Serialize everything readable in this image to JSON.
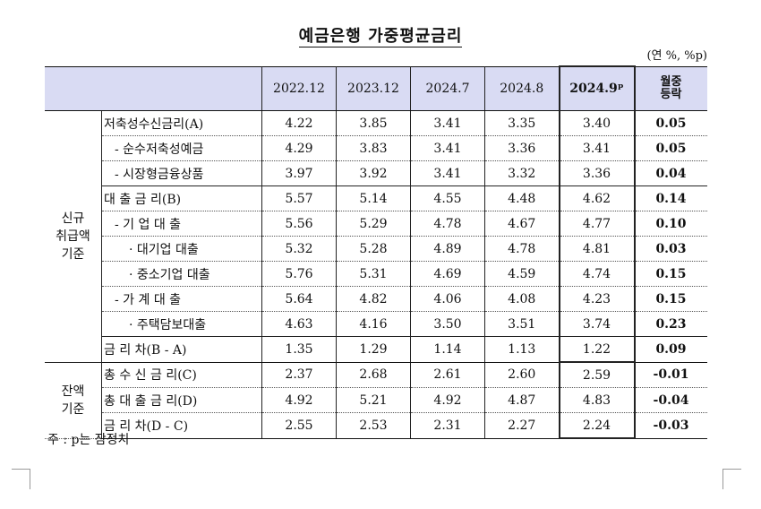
{
  "title": "예금은행 가중평균금리",
  "unit": "(연 %, %p)",
  "columns": [
    "2022.12",
    "2023.12",
    "2024.7",
    "2024.8",
    "2024.9ᵖ",
    "월중\n등락"
  ],
  "groups": {
    "new": "신규\n취급액\n기준",
    "balance": "잔액\n기준"
  },
  "rows": [
    {
      "label": "저축성수신금리(A)",
      "values": [
        "4.22",
        "3.85",
        "3.41",
        "3.35",
        "3.40",
        "0.05"
      ]
    },
    {
      "label": "- 순수저축성예금",
      "values": [
        "4.29",
        "3.83",
        "3.41",
        "3.36",
        "3.41",
        "0.05"
      ]
    },
    {
      "label": "- 시장형금융상품",
      "values": [
        "3.97",
        "3.92",
        "3.41",
        "3.32",
        "3.36",
        "0.04"
      ]
    },
    {
      "label": "대 출 금 리(B)",
      "values": [
        "5.57",
        "5.14",
        "4.55",
        "4.48",
        "4.62",
        "0.14"
      ]
    },
    {
      "label": "- 기 업 대 출",
      "values": [
        "5.56",
        "5.29",
        "4.78",
        "4.67",
        "4.77",
        "0.10"
      ]
    },
    {
      "label": "· 대기업 대출",
      "values": [
        "5.32",
        "5.28",
        "4.89",
        "4.78",
        "4.81",
        "0.03"
      ]
    },
    {
      "label": "· 중소기업 대출",
      "values": [
        "5.76",
        "5.31",
        "4.69",
        "4.59",
        "4.74",
        "0.15"
      ]
    },
    {
      "label": "- 가 계 대 출",
      "values": [
        "5.64",
        "4.82",
        "4.06",
        "4.08",
        "4.23",
        "0.15"
      ]
    },
    {
      "label": "· 주택담보대출",
      "values": [
        "4.63",
        "4.16",
        "3.50",
        "3.51",
        "3.74",
        "0.23"
      ]
    },
    {
      "label": "금 리 차(B - A)",
      "values": [
        "1.35",
        "1.29",
        "1.14",
        "1.13",
        "1.22",
        "0.09"
      ]
    },
    {
      "label": "총 수 신 금 리(C)",
      "values": [
        "2.37",
        "2.68",
        "2.61",
        "2.60",
        "2.59",
        "-0.01"
      ]
    },
    {
      "label": "총 대 출 금 리(D)",
      "values": [
        "4.92",
        "5.21",
        "4.92",
        "4.87",
        "4.83",
        "-0.04"
      ]
    },
    {
      "label": "금 리 차(D - C)",
      "values": [
        "2.55",
        "2.53",
        "2.31",
        "2.27",
        "2.24",
        "-0.03"
      ]
    }
  ],
  "note": "주 : p는 잠정치"
}
